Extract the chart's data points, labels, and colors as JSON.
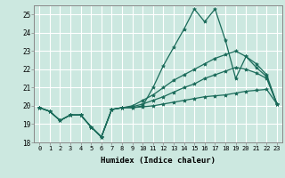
{
  "xlabel": "Humidex (Indice chaleur)",
  "ylabel": "",
  "background_color": "#cce8e0",
  "grid_color": "#ffffff",
  "line_color": "#1a6b5a",
  "xlim": [
    -0.5,
    23.5
  ],
  "ylim": [
    18,
    25.5
  ],
  "yticks": [
    18,
    19,
    20,
    21,
    22,
    23,
    24,
    25
  ],
  "xticks": [
    0,
    1,
    2,
    3,
    4,
    5,
    6,
    7,
    8,
    9,
    10,
    11,
    12,
    13,
    14,
    15,
    16,
    17,
    18,
    19,
    20,
    21,
    22,
    23
  ],
  "series": [
    [
      19.9,
      19.7,
      19.2,
      19.5,
      19.5,
      18.85,
      18.3,
      19.8,
      19.9,
      19.9,
      20.0,
      21.0,
      22.2,
      23.2,
      24.2,
      25.3,
      24.6,
      25.3,
      23.6,
      21.5,
      22.7,
      22.1,
      21.6,
      20.1
    ],
    [
      19.9,
      19.7,
      19.2,
      19.5,
      19.5,
      18.85,
      18.3,
      19.8,
      19.9,
      20.0,
      20.3,
      20.6,
      21.0,
      21.4,
      21.7,
      22.0,
      22.3,
      22.6,
      22.8,
      23.0,
      22.7,
      22.3,
      21.7,
      20.1
    ],
    [
      19.9,
      19.7,
      19.2,
      19.5,
      19.5,
      18.85,
      18.3,
      19.8,
      19.9,
      19.95,
      20.1,
      20.3,
      20.5,
      20.75,
      21.0,
      21.2,
      21.5,
      21.7,
      21.9,
      22.1,
      22.0,
      21.8,
      21.5,
      20.1
    ],
    [
      19.9,
      19.7,
      19.2,
      19.5,
      19.5,
      18.85,
      18.3,
      19.8,
      19.9,
      19.9,
      19.95,
      20.0,
      20.1,
      20.2,
      20.3,
      20.4,
      20.5,
      20.55,
      20.6,
      20.7,
      20.8,
      20.85,
      20.9,
      20.1
    ]
  ]
}
